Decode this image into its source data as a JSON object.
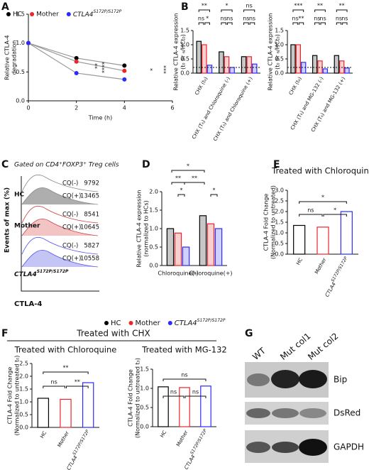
{
  "chart_data": [
    {
      "type": "line",
      "panel": "A",
      "x": [
        0,
        2,
        4
      ],
      "xlim": [
        0,
        6
      ],
      "xticks": [
        0,
        2,
        4,
        6
      ],
      "ylim": [
        0,
        1.5
      ],
      "yticks": [
        {
          "value": 0,
          "label": "0.0"
        },
        {
          "value": 0.5,
          "label": "0.5"
        },
        {
          "value": 1,
          "label": "1.0"
        },
        {
          "value": 1.5,
          "label": "1.5"
        }
      ],
      "xlabel": "Time (h)",
      "ylabel": [
        "Relative CTLA-4",
        "degradation"
      ],
      "line_color": "#999999",
      "series": [
        {
          "name": "HC",
          "color": "#000000",
          "values": [
            1,
            0.74,
            0.61
          ]
        },
        {
          "name": "Mother",
          "color": "#e8262b",
          "values": [
            1,
            0.68,
            0.52
          ]
        },
        {
          "name": "CTLA4",
          "name_sup": "S172P/S172P",
          "color": "#2b2bff",
          "values": [
            1,
            0.48,
            0.37
          ]
        }
      ],
      "annotations": [
        "**",
        "****",
        "*",
        "***"
      ]
    },
    {
      "type": "bar",
      "panel": "B",
      "categories": [
        "CHX (t₀)",
        "CHX (T₆) and Chloroquine (-)",
        "CHX (T₆) and Chloroquine (+)"
      ],
      "ylim": [
        0,
        1.5
      ],
      "yticks": [
        {
          "value": 0,
          "label": "0.0"
        },
        {
          "value": 0.5,
          "label": "0.5"
        },
        {
          "value": 1,
          "label": "1.0"
        },
        {
          "value": 1.5,
          "label": "1.5"
        }
      ],
      "ylabel": [
        "Relative CTLA-4 expression",
        "(t₀ or ₆/HCt₀)"
      ],
      "bar_fill": "tint",
      "reference_line": 0.2,
      "series": [
        {
          "name": "HC",
          "color": "#000000",
          "values": [
            1.12,
            0.75,
            0.58
          ]
        },
        {
          "name": "Mother",
          "color": "#e8262b",
          "values": [
            1.0,
            0.58,
            0.58
          ]
        },
        {
          "name": "CTLA4",
          "color": "#2b2bff",
          "values": [
            0.28,
            0.2,
            0.32
          ]
        }
      ],
      "annotations": [
        "**",
        "ns",
        "*",
        "*",
        "ns",
        "ns",
        "ns",
        "ns",
        "ns"
      ]
    },
    {
      "type": "bar",
      "categories": [
        "CHX (t₀)",
        "CHX (T₆) and MG-132 (-)",
        "CHX (T₆) and MG-132 (+)"
      ],
      "ylim": [
        0,
        1.5
      ],
      "yticks": [
        {
          "value": 0,
          "label": "0.0"
        },
        {
          "value": 0.5,
          "label": "0.5"
        },
        {
          "value": 1,
          "label": "1.0"
        },
        {
          "value": 1.5,
          "label": "1.5"
        }
      ],
      "ylabel": [
        "Relative CTLA-4 expression",
        "(t₀ or ₆/HCt₀)"
      ],
      "bar_fill": "tint",
      "reference_line": 0.2,
      "series": [
        {
          "name": "HC",
          "color": "#000000",
          "values": [
            1.0,
            0.62,
            0.62
          ]
        },
        {
          "name": "Mother",
          "color": "#e8262b",
          "values": [
            1.0,
            0.43,
            0.43
          ]
        },
        {
          "name": "CTLA4",
          "color": "#2b2bff",
          "values": [
            0.38,
            0.15,
            0.18
          ]
        }
      ],
      "annotations": [
        "***",
        "ns",
        "**",
        "**",
        "ns",
        "ns",
        "**",
        "ns",
        "ns"
      ]
    },
    {
      "type": "bar",
      "panel": "D",
      "categories": [
        "Chloroquine(-)",
        "Chloroquine(+)"
      ],
      "ylim": [
        0,
        2
      ],
      "yticks": [
        {
          "value": 0,
          "label": "0.0"
        },
        {
          "value": 0.5,
          "label": "0.5"
        },
        {
          "value": 1,
          "label": "1.0"
        },
        {
          "value": 1.5,
          "label": "1.5"
        },
        {
          "value": 2,
          "label": "2.0"
        }
      ],
      "ylabel": [
        "Relative CTLA-4 expression",
        "(normalized to HCs)"
      ],
      "bar_fill": "tint",
      "legend": "bottom",
      "series": [
        {
          "name": "HC",
          "color": "#000000",
          "values": [
            1.0,
            1.35
          ]
        },
        {
          "name": "Mother",
          "color": "#e8262b",
          "values": [
            0.88,
            1.13
          ]
        },
        {
          "name": "CTLA4",
          "name_sup": "S172P/S172P",
          "color": "#2b2bff",
          "values": [
            0.5,
            1.0
          ]
        }
      ],
      "annotations": [
        "*",
        "**",
        "*",
        "**",
        "*"
      ]
    },
    {
      "type": "bar",
      "panel": "E",
      "title": "Treated with Chloroquine",
      "categories": [
        "HC",
        "Mother",
        "CTLA4"
      ],
      "last_category_sup": "S172P/S172P",
      "ylim": [
        0,
        3
      ],
      "yticks": [
        {
          "value": 0,
          "label": "0.0"
        },
        {
          "value": 0.5,
          "label": "0.5"
        },
        {
          "value": 1,
          "label": "1.0"
        },
        {
          "value": 1.5,
          "label": "1.5"
        },
        {
          "value": 2,
          "label": "2.0"
        },
        {
          "value": 2.5,
          "label": "2.5"
        },
        {
          "value": 3,
          "label": "3.0"
        }
      ],
      "ylabel": [
        "CTLA-4 Fold Change",
        "(Normalized to untreated)"
      ],
      "bar_fill": "none",
      "values": [
        1.35,
        1.27,
        2.0
      ],
      "colors": [
        "#000000",
        "#e8262b",
        "#2b2bff"
      ],
      "annotations": [
        "*",
        "ns",
        "*"
      ]
    },
    {
      "type": "bar",
      "title": "Treated with Chloroquine",
      "categories": [
        "HC",
        "Mother",
        "CTLA4"
      ],
      "last_category_sup": "S172P/S172P",
      "ylim": [
        0,
        2.5
      ],
      "yticks": [
        {
          "value": 0,
          "label": "0.0"
        },
        {
          "value": 0.5,
          "label": "0.5"
        },
        {
          "value": 1,
          "label": "1.0"
        },
        {
          "value": 1.5,
          "label": "1.5"
        },
        {
          "value": 2,
          "label": "2.0"
        },
        {
          "value": 2.5,
          "label": "2.5"
        }
      ],
      "ylabel": [
        "CTLA-4 Fold Change",
        "(Normalized to untreated t₀)"
      ],
      "bar_fill": "none",
      "values": [
        1.14,
        1.1,
        1.75
      ],
      "colors": [
        "#000000",
        "#e8262b",
        "#2b2bff"
      ],
      "annotations": [
        "**",
        "ns",
        "**"
      ]
    },
    {
      "type": "bar",
      "title": "Treated with MG-132",
      "categories": [
        "HC",
        "Mother",
        "CTLA4"
      ],
      "last_category_sup": "S172P/S172P",
      "ylim": [
        0,
        1.5
      ],
      "yticks": [
        {
          "value": 0,
          "label": "0.0"
        },
        {
          "value": 0.5,
          "label": "0.5"
        },
        {
          "value": 1,
          "label": "1.0"
        },
        {
          "value": 1.5,
          "label": "1.5"
        }
      ],
      "ylabel": [
        "CTLA-4 Fold Change",
        "(Normalized to untreated t₀)"
      ],
      "bar_fill": "none",
      "values": [
        1.04,
        1.02,
        1.06
      ],
      "colors": [
        "#000000",
        "#e8262b",
        "#2b2bff"
      ],
      "annotations": [
        "ns",
        "ns",
        "ns"
      ]
    }
  ],
  "panel_f": {
    "panel": "F",
    "title": "Treated with CHX"
  },
  "flow_panel": {
    "panel": "C",
    "title": "Gated on CD4⁺FOXP3⁺ Treg cells",
    "ylabel": "Events of max (%)",
    "xlabel": "CTLA-4",
    "groups": [
      {
        "name": "HC",
        "rows": [
          {
            "label": "CQ(-)",
            "mfi": 9792
          },
          {
            "label": "CQ(+)",
            "mfi": 13465
          }
        ]
      },
      {
        "name": "Mother",
        "rows": [
          {
            "label": "CQ(-)",
            "mfi": 8541
          },
          {
            "label": "CQ(+)",
            "mfi": 10645
          }
        ]
      },
      {
        "name": "CTLA4",
        "name_sup": "S172P/S172P",
        "rows": [
          {
            "label": "CQ(-)",
            "mfi": 5827
          },
          {
            "label": "CQ(+)",
            "mfi": 10558
          }
        ]
      }
    ]
  },
  "blot_panel": {
    "panel": "G",
    "lanes": [
      "WT",
      "Mut col1",
      "Mut col2"
    ],
    "bands": [
      "Bip",
      "DsRed",
      "GAPDH"
    ]
  }
}
